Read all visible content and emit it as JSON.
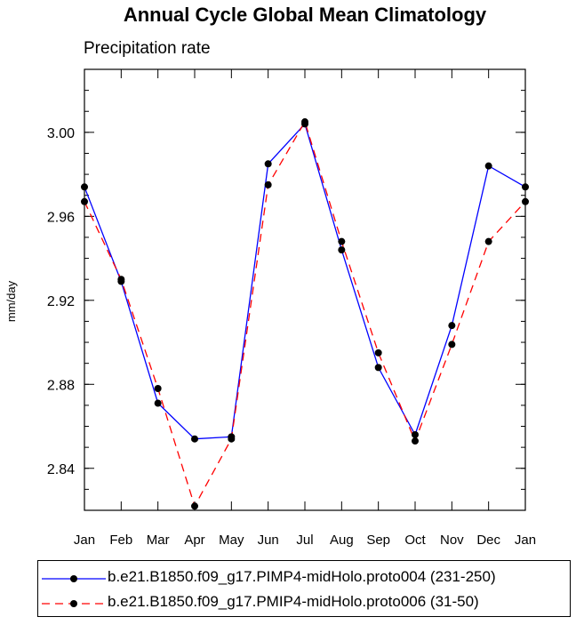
{
  "chart_data": {
    "type": "line",
    "title": "Annual Cycle Global Mean Climatology",
    "subtitle": "Precipitation rate",
    "xlabel": "",
    "ylabel": "mm/day",
    "categories": [
      "Jan",
      "Feb",
      "Mar",
      "Apr",
      "May",
      "Jun",
      "Jul",
      "Aug",
      "Sep",
      "Oct",
      "Nov",
      "Dec",
      "Jan"
    ],
    "ylim": [
      2.82,
      3.03
    ],
    "yticks": [
      2.84,
      2.88,
      2.92,
      2.96,
      3.0
    ],
    "ytick_labels": [
      "2.84",
      "2.88",
      "2.92",
      "2.96",
      "3.00"
    ],
    "yminor_step": 0.01,
    "grid": false,
    "legend_position": "bottom",
    "series": [
      {
        "name": "b.e21.B1850.f09_g17.PIMP4-midHolo.proto004 (231-250)",
        "color": "#0000ff",
        "dash": "solid",
        "values": [
          2.974,
          2.929,
          2.871,
          2.854,
          2.855,
          2.985,
          3.004,
          2.944,
          2.888,
          2.856,
          2.908,
          2.984,
          2.974
        ]
      },
      {
        "name": "b.e21.B1850.f09_g17.PMIP4-midHolo.proto006 (31-50)",
        "color": "#ff0000",
        "dash": "dashed",
        "values": [
          2.967,
          2.93,
          2.878,
          2.822,
          2.854,
          2.975,
          3.005,
          2.948,
          2.895,
          2.853,
          2.899,
          2.948,
          2.967
        ]
      }
    ]
  }
}
